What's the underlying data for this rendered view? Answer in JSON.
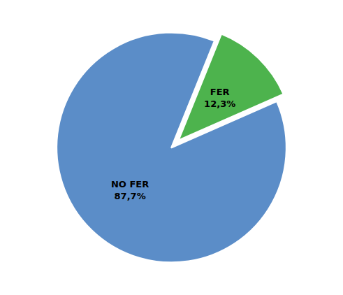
{
  "chart_data": {
    "type": "pie",
    "categories": [
      "FER",
      "NO FER"
    ],
    "values": [
      12.3,
      87.7
    ],
    "value_labels": [
      "12,3%",
      "87,7%"
    ],
    "colors": [
      "#4db34d",
      "#5b8dc8"
    ],
    "data_labels": true
  }
}
